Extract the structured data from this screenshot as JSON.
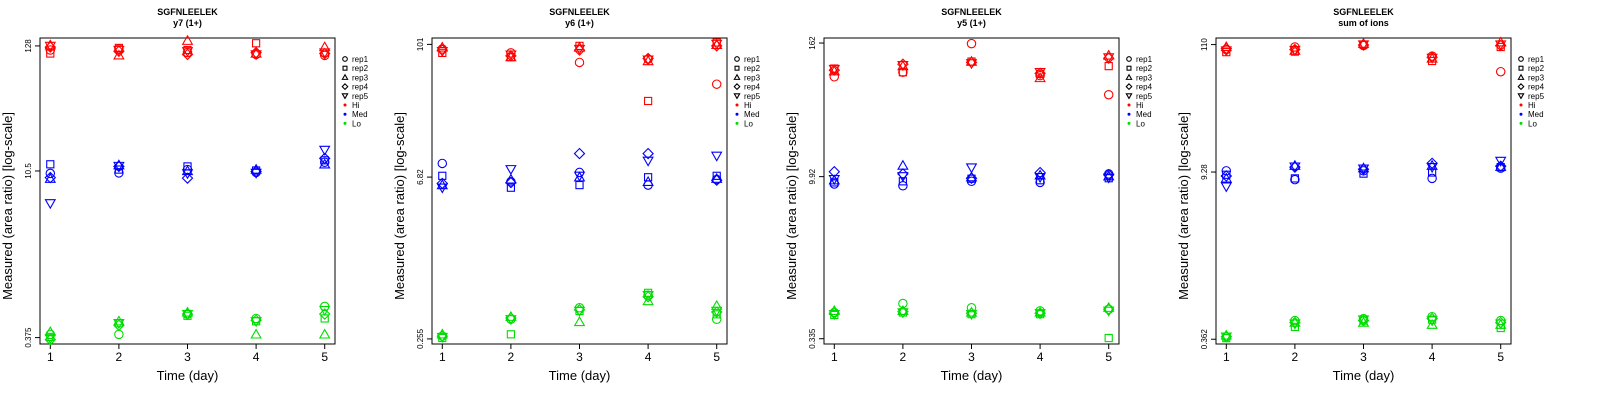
{
  "colors": {
    "Hi": "#ff0000",
    "Med": "#0000ff",
    "Lo": "#00dd00"
  },
  "legend_items": [
    {
      "label": "rep1",
      "marker": "circle"
    },
    {
      "label": "rep2",
      "marker": "square"
    },
    {
      "label": "rep3",
      "marker": "triangle-up"
    },
    {
      "label": "rep4",
      "marker": "diamond"
    },
    {
      "label": "rep5",
      "marker": "triangle-down"
    },
    {
      "label": "Hi",
      "marker": "dot",
      "color": "#ff0000"
    },
    {
      "label": "Med",
      "marker": "dot",
      "color": "#0000ff"
    },
    {
      "label": "Lo",
      "marker": "dot",
      "color": "#00dd00"
    }
  ],
  "chart_data": [
    {
      "type": "scatter",
      "title": "SGFNLEELEK",
      "subtitle": "y7 (1+)",
      "xlabel": "Time (day)",
      "ylabel": "Measured (area ratio) [log-scale]",
      "y_scale": "log",
      "x_ticks": [
        1,
        2,
        3,
        4,
        5
      ],
      "y_ticks": [
        "0.375",
        "10.5",
        "128"
      ],
      "ylim": [
        0.33,
        150
      ],
      "legend_position": "right",
      "grid": false,
      "series": [
        {
          "level": "Hi",
          "replicate": "rep1",
          "marker": "circle",
          "values": [
            118,
            120,
            112,
            108,
            106
          ]
        },
        {
          "level": "Hi",
          "replicate": "rep2",
          "marker": "square",
          "values": [
            110,
            123,
            118,
            135,
            112
          ]
        },
        {
          "level": "Hi",
          "replicate": "rep3",
          "marker": "triangle-up",
          "values": [
            130,
            106,
            142,
            110,
            125
          ]
        },
        {
          "level": "Hi",
          "replicate": "rep4",
          "marker": "diamond",
          "values": [
            125,
            115,
            108,
            112,
            110
          ]
        },
        {
          "level": "Hi",
          "replicate": "rep5",
          "marker": "triangle-down",
          "values": [
            128,
            118,
            115,
            108,
            112
          ]
        },
        {
          "level": "Med",
          "replicate": "rep1",
          "marker": "circle",
          "values": [
            10,
            10.1,
            10.8,
            10.2,
            12.5
          ]
        },
        {
          "level": "Med",
          "replicate": "rep2",
          "marker": "square",
          "values": [
            12,
            10.8,
            11.5,
            10.6,
            13
          ]
        },
        {
          "level": "Med",
          "replicate": "rep3",
          "marker": "triangle-up",
          "values": [
            9,
            11.8,
            10.5,
            10.8,
            12
          ]
        },
        {
          "level": "Med",
          "replicate": "rep4",
          "marker": "diamond",
          "values": [
            9.2,
            11.5,
            9.1,
            10.4,
            13.5
          ]
        },
        {
          "level": "Med",
          "replicate": "rep5",
          "marker": "triangle-down",
          "values": [
            5.5,
            11.6,
            10,
            10.1,
            16
          ]
        },
        {
          "level": "Lo",
          "replicate": "rep1",
          "marker": "circle",
          "values": [
            0.4,
            0.4,
            0.6,
            0.55,
            0.7
          ]
        },
        {
          "level": "Lo",
          "replicate": "rep2",
          "marker": "square",
          "values": [
            0.38,
            0.5,
            0.58,
            0.52,
            0.55
          ]
        },
        {
          "level": "Lo",
          "replicate": "rep3",
          "marker": "triangle-up",
          "values": [
            0.42,
            0.52,
            0.62,
            0.4,
            0.4
          ]
        },
        {
          "level": "Lo",
          "replicate": "rep4",
          "marker": "diamond",
          "values": [
            0.36,
            0.48,
            0.6,
            0.53,
            0.6
          ]
        },
        {
          "level": "Lo",
          "replicate": "rep5",
          "marker": "triangle-down",
          "values": [
            0.37,
            0.5,
            0.6,
            0.52,
            0.65
          ]
        }
      ]
    },
    {
      "type": "scatter",
      "title": "SGFNLEELEK",
      "subtitle": "y6 (1+)",
      "xlabel": "Time (day)",
      "ylabel": "Measured (area ratio) [log-scale]",
      "y_scale": "log",
      "x_ticks": [
        1,
        2,
        3,
        4,
        5
      ],
      "y_ticks": [
        "0.255",
        "6.82",
        "101"
      ],
      "ylim": [
        0.23,
        115
      ],
      "legend_position": "right",
      "grid": false,
      "series": [
        {
          "level": "Hi",
          "replicate": "rep1",
          "marker": "circle",
          "values": [
            92,
            85,
            70,
            75,
            45
          ]
        },
        {
          "level": "Hi",
          "replicate": "rep2",
          "marker": "square",
          "values": [
            85,
            78,
            98,
            32,
            105
          ]
        },
        {
          "level": "Hi",
          "replicate": "rep3",
          "marker": "triangle-up",
          "values": [
            95,
            78,
            95,
            72,
            100
          ]
        },
        {
          "level": "Hi",
          "replicate": "rep4",
          "marker": "diamond",
          "values": [
            90,
            80,
            90,
            76,
            98
          ]
        },
        {
          "level": "Hi",
          "replicate": "rep5",
          "marker": "triangle-down",
          "values": [
            88,
            82,
            92,
            74,
            102
          ]
        },
        {
          "level": "Med",
          "replicate": "rep1",
          "marker": "circle",
          "values": [
            9,
            6.2,
            7.5,
            5.8,
            6.5
          ]
        },
        {
          "level": "Med",
          "replicate": "rep2",
          "marker": "square",
          "values": [
            7,
            5.5,
            5.8,
            6.8,
            7
          ]
        },
        {
          "level": "Med",
          "replicate": "rep3",
          "marker": "triangle-up",
          "values": [
            5.8,
            6.5,
            6.8,
            6.2,
            6.6
          ]
        },
        {
          "level": "Med",
          "replicate": "rep4",
          "marker": "diamond",
          "values": [
            6,
            6.1,
            11,
            11,
            6.4
          ]
        },
        {
          "level": "Med",
          "replicate": "rep5",
          "marker": "triangle-down",
          "values": [
            5.5,
            8,
            7,
            9.5,
            10.5
          ]
        },
        {
          "level": "Lo",
          "replicate": "rep1",
          "marker": "circle",
          "values": [
            0.27,
            0.38,
            0.48,
            0.62,
            0.38
          ]
        },
        {
          "level": "Lo",
          "replicate": "rep2",
          "marker": "square",
          "values": [
            0.26,
            0.28,
            0.45,
            0.65,
            0.42
          ]
        },
        {
          "level": "Lo",
          "replicate": "rep3",
          "marker": "triangle-up",
          "values": [
            0.28,
            0.4,
            0.36,
            0.55,
            0.5
          ]
        },
        {
          "level": "Lo",
          "replicate": "rep4",
          "marker": "diamond",
          "values": [
            0.27,
            0.39,
            0.46,
            0.6,
            0.44
          ]
        },
        {
          "level": "Lo",
          "replicate": "rep5",
          "marker": "triangle-down",
          "values": [
            0.265,
            0.38,
            0.45,
            0.62,
            0.45
          ]
        }
      ]
    },
    {
      "type": "scatter",
      "title": "SGFNLEELEK",
      "subtitle": "y5 (1+)",
      "xlabel": "Time (day)",
      "ylabel": "Measured (area ratio) [log-scale]",
      "y_scale": "log",
      "x_ticks": [
        1,
        2,
        3,
        4,
        5
      ],
      "y_ticks": [
        "0.335",
        "9.92",
        "162"
      ],
      "ylim": [
        0.3,
        180
      ],
      "legend_position": "right",
      "grid": false,
      "series": [
        {
          "level": "Hi",
          "replicate": "rep1",
          "marker": "circle",
          "values": [
            80,
            88,
            160,
            82,
            55
          ]
        },
        {
          "level": "Hi",
          "replicate": "rep2",
          "marker": "square",
          "values": [
            95,
            88,
            110,
            85,
            100
          ]
        },
        {
          "level": "Hi",
          "replicate": "rep3",
          "marker": "triangle-up",
          "values": [
            90,
            100,
            110,
            78,
            125
          ]
        },
        {
          "level": "Hi",
          "replicate": "rep4",
          "marker": "diamond",
          "values": [
            92,
            104,
            108,
            86,
            118
          ]
        },
        {
          "level": "Hi",
          "replicate": "rep5",
          "marker": "triangle-down",
          "values": [
            94,
            102,
            106,
            88,
            120
          ]
        },
        {
          "level": "Med",
          "replicate": "rep1",
          "marker": "circle",
          "values": [
            8.5,
            8.2,
            9,
            8.8,
            10.5
          ]
        },
        {
          "level": "Med",
          "replicate": "rep2",
          "marker": "square",
          "values": [
            8.8,
            9,
            9.5,
            9.2,
            9.6
          ]
        },
        {
          "level": "Med",
          "replicate": "rep3",
          "marker": "triangle-up",
          "values": [
            9.2,
            12.5,
            9.8,
            10.2,
            10
          ]
        },
        {
          "level": "Med",
          "replicate": "rep4",
          "marker": "diamond",
          "values": [
            11,
            10.5,
            9.6,
            10.8,
            10.3
          ]
        },
        {
          "level": "Med",
          "replicate": "rep5",
          "marker": "triangle-down",
          "values": [
            9.4,
            10,
            12,
            9.8,
            9.7
          ]
        },
        {
          "level": "Lo",
          "replicate": "rep1",
          "marker": "circle",
          "values": [
            0.58,
            0.7,
            0.64,
            0.6,
            0.62
          ]
        },
        {
          "level": "Lo",
          "replicate": "rep2",
          "marker": "square",
          "values": [
            0.55,
            0.58,
            0.56,
            0.56,
            0.34
          ]
        },
        {
          "level": "Lo",
          "replicate": "rep3",
          "marker": "triangle-up",
          "values": [
            0.6,
            0.6,
            0.58,
            0.58,
            0.64
          ]
        },
        {
          "level": "Lo",
          "replicate": "rep4",
          "marker": "diamond",
          "values": [
            0.57,
            0.59,
            0.57,
            0.57,
            0.62
          ]
        },
        {
          "level": "Lo",
          "replicate": "rep5",
          "marker": "triangle-down",
          "values": [
            0.56,
            0.58,
            0.56,
            0.57,
            0.6
          ]
        }
      ]
    },
    {
      "type": "scatter",
      "title": "SGFNLEELEK",
      "subtitle": "sum of ions",
      "xlabel": "Time (day)",
      "ylabel": "Measured (area ratio) [log-scale]",
      "y_scale": "log",
      "x_ticks": [
        1,
        2,
        3,
        4,
        5
      ],
      "y_ticks": [
        "0.362",
        "9.28",
        "110"
      ],
      "ylim": [
        0.33,
        125
      ],
      "legend_position": "right",
      "grid": false,
      "series": [
        {
          "level": "Hi",
          "replicate": "rep1",
          "marker": "circle",
          "values": [
            100,
            105,
            108,
            88,
            65
          ]
        },
        {
          "level": "Hi",
          "replicate": "rep2",
          "marker": "square",
          "values": [
            95,
            96,
            110,
            80,
            105
          ]
        },
        {
          "level": "Hi",
          "replicate": "rep3",
          "marker": "triangle-up",
          "values": [
            105,
            98,
            112,
            84,
            115
          ]
        },
        {
          "level": "Hi",
          "replicate": "rep4",
          "marker": "diamond",
          "values": [
            102,
            100,
            109,
            86,
            108
          ]
        },
        {
          "level": "Hi",
          "replicate": "rep5",
          "marker": "triangle-down",
          "values": [
            98,
            99,
            110,
            85,
            110
          ]
        },
        {
          "level": "Med",
          "replicate": "rep1",
          "marker": "circle",
          "values": [
            9.5,
            8,
            9.5,
            8.2,
            10
          ]
        },
        {
          "level": "Med",
          "replicate": "rep2",
          "marker": "square",
          "values": [
            8.8,
            8.2,
            9,
            9.2,
            10.2
          ]
        },
        {
          "level": "Med",
          "replicate": "rep3",
          "marker": "triangle-up",
          "values": [
            8.2,
            10.5,
            10,
            10.5,
            10.3
          ]
        },
        {
          "level": "Med",
          "replicate": "rep4",
          "marker": "diamond",
          "values": [
            8.6,
            10.2,
            9.8,
            11,
            10.4
          ]
        },
        {
          "level": "Med",
          "replicate": "rep5",
          "marker": "triangle-down",
          "values": [
            7,
            10.3,
            9.9,
            10.2,
            11.5
          ]
        },
        {
          "level": "Lo",
          "replicate": "rep1",
          "marker": "circle",
          "values": [
            0.38,
            0.52,
            0.54,
            0.56,
            0.52
          ]
        },
        {
          "level": "Lo",
          "replicate": "rep2",
          "marker": "square",
          "values": [
            0.37,
            0.46,
            0.52,
            0.53,
            0.45
          ]
        },
        {
          "level": "Lo",
          "replicate": "rep3",
          "marker": "triangle-up",
          "values": [
            0.39,
            0.5,
            0.5,
            0.48,
            0.48
          ]
        },
        {
          "level": "Lo",
          "replicate": "rep4",
          "marker": "diamond",
          "values": [
            0.38,
            0.5,
            0.52,
            0.54,
            0.5
          ]
        },
        {
          "level": "Lo",
          "replicate": "rep5",
          "marker": "triangle-down",
          "values": [
            0.38,
            0.49,
            0.53,
            0.52,
            0.49
          ]
        }
      ]
    }
  ]
}
